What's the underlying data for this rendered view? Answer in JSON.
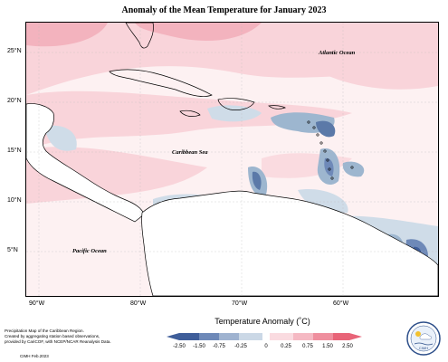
{
  "title": "Anomaly of the Mean Temperature for January 2023",
  "map": {
    "lat_labels": [
      "25°N",
      "20°N",
      "15°N",
      "10°N",
      "5°N"
    ],
    "lon_labels": [
      "90°W",
      "80°W",
      "70°W",
      "60°W"
    ],
    "ocean_labels": {
      "atlantic": "Atlantic Ocean",
      "caribbean": "Caribbean Sea",
      "pacific": "Pacific Ocean"
    },
    "colors": {
      "neutral": "#fdf1f2",
      "light_pink": "#f9d4da",
      "pink": "#f3b3be",
      "light_blue": "#cfdce8",
      "blue": "#9db6cf",
      "dark_blue": "#5b79a8"
    }
  },
  "legend": {
    "title": "Temperature Anomaly (˚C)",
    "labels": [
      "-2.50",
      "-1.50",
      "-0.75",
      "-0.25",
      "0",
      "0.25",
      "0.75",
      "1.50",
      "2.50"
    ],
    "colors": [
      "#3f5e9a",
      "#6e89b8",
      "#9fb3d0",
      "#cbd8e6",
      "#ffffff",
      "#fadbe0",
      "#f5b9c3",
      "#ef8f9e",
      "#e86478"
    ]
  },
  "footnote": {
    "lines": [
      "Precipitation Map of the Caribbean Region.",
      "Created by aggregating station based observations,",
      "provided by CariCOF, with NCEP/NCAR Reanalysis Data."
    ],
    "credit": "CIMH Feb.2023"
  },
  "logo": {
    "text": "CIMH"
  }
}
